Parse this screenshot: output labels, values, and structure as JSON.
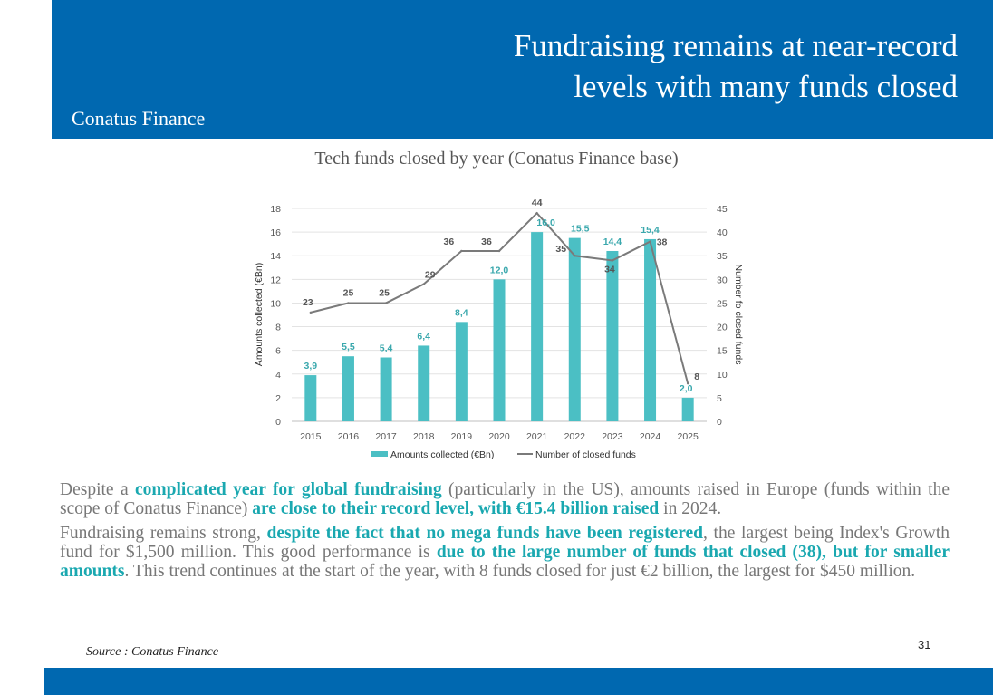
{
  "header": {
    "title_line1": "Fundraising remains at near-record",
    "title_line2": "levels with many funds closed",
    "brand": "Conatus Finance"
  },
  "chart_title": "Tech funds closed by year (Conatus Finance base)",
  "chart_data": {
    "type": "bar",
    "categories": [
      "2015",
      "2016",
      "2017",
      "2018",
      "2019",
      "2020",
      "2021",
      "2022",
      "2023",
      "2024",
      "2025"
    ],
    "series": [
      {
        "name": "Amounts collected (€Bn)",
        "type": "bar",
        "axis": "left",
        "values": [
          3.9,
          5.5,
          5.4,
          6.4,
          8.4,
          12.0,
          16.0,
          15.5,
          14.4,
          15.4,
          2.0
        ],
        "labels": [
          "3,9",
          "5,5",
          "5,4",
          "6,4",
          "8,4",
          "12,0",
          "16,0",
          "15,5",
          "14,4",
          "15,4",
          "2,0"
        ],
        "color": "#4bbfc4"
      },
      {
        "name": "Number of closed funds",
        "type": "line",
        "axis": "right",
        "values": [
          23,
          25,
          25,
          29,
          36,
          36,
          44,
          35,
          34,
          38,
          8
        ],
        "labels": [
          "23",
          "25",
          "25",
          "29",
          "36",
          "36",
          "44",
          "35",
          "34",
          "38",
          "8"
        ],
        "color": "#7a7a7a"
      }
    ],
    "ylabel_left": "Amounts collected (€Bn)",
    "ylabel_right": "Number fo closed funds",
    "ylim_left": [
      0,
      18
    ],
    "ylim_right": [
      0,
      45
    ],
    "yticks_left": [
      "0",
      "2",
      "4",
      "6",
      "8",
      "10",
      "12",
      "14",
      "16",
      "18"
    ],
    "yticks_right": [
      "0",
      "5",
      "10",
      "15",
      "20",
      "25",
      "30",
      "35",
      "40",
      "45"
    ],
    "grid": true,
    "legend": "bottom",
    "label_color_bar": "#3aa8ad",
    "label_color_line": "#555555"
  },
  "body": {
    "p1_a": "Despite a ",
    "p1_b": "complicated year for global fundraising",
    "p1_c": " (particularly in the US), amounts raised in Europe (funds within the scope of Conatus Finance) ",
    "p1_d": "are close to their record level, with €15.4 billion raised",
    "p1_e": " in 2024.",
    "p2_a": "Fundraising remains strong, ",
    "p2_b": "despite the fact that no mega funds have been registered",
    "p2_c": ", the largest being Index's Growth fund for $1,500 million. This good performance is ",
    "p2_d": "due to the large number of funds that closed (38), but for smaller amounts",
    "p2_e": ". This trend continues at the start of the year, with 8 funds closed for just €2 billion, the largest for $450 million."
  },
  "source": "Source : Conatus Finance",
  "page_number": "31",
  "colors": {
    "brand_blue": "#0068b0",
    "highlight": "#1aa8b0",
    "body_text": "#777777"
  }
}
